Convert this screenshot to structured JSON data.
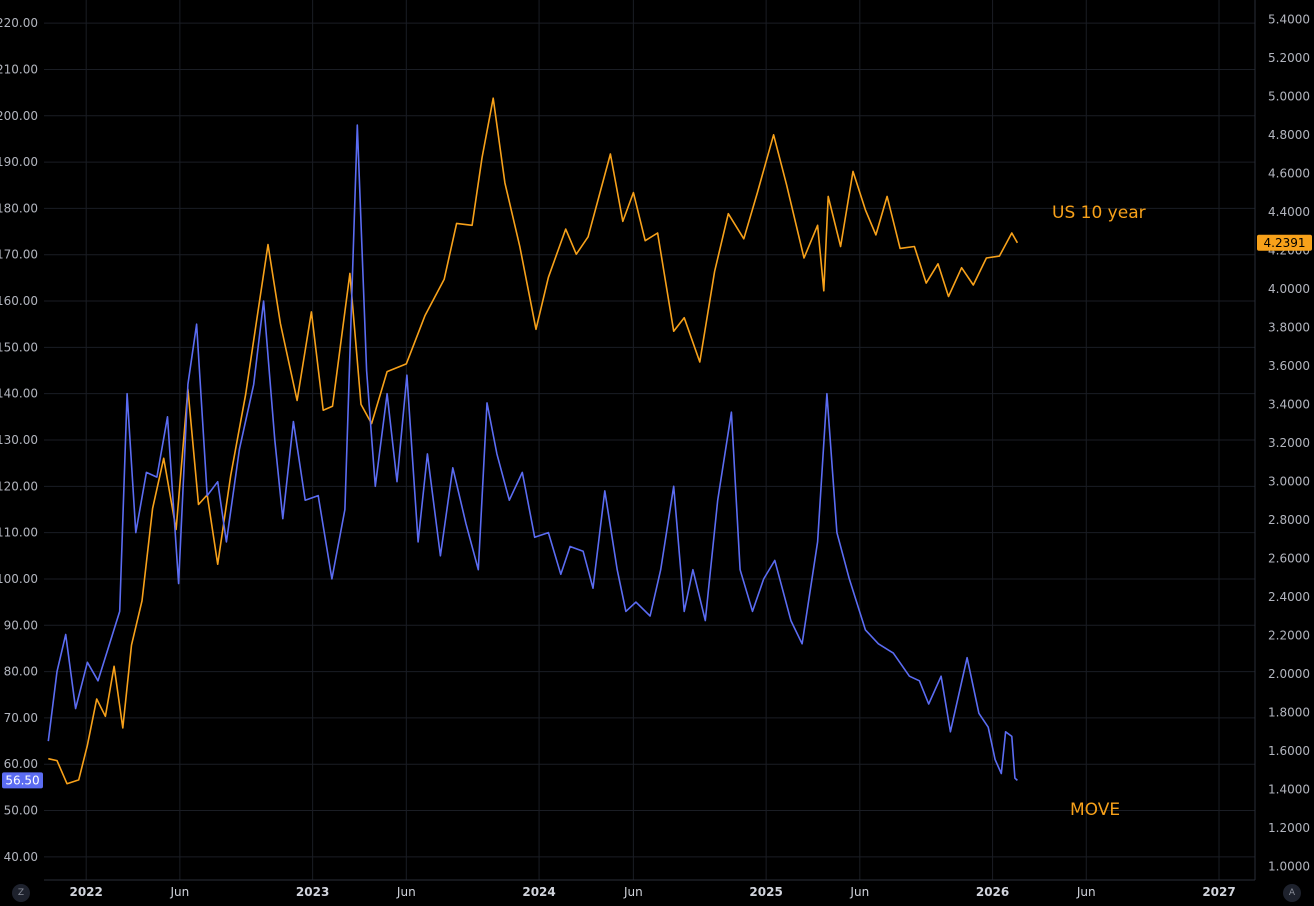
{
  "chart_data": {
    "type": "line",
    "x_axis": {
      "range": [
        "2021-10-25",
        "2027-02-28"
      ],
      "ticks": [
        "2022",
        "Jun",
        "2023",
        "Jun",
        "2024",
        "Jun",
        "2025",
        "Jun",
        "2026",
        "Jun",
        "2027"
      ],
      "tick_dates": [
        "2022-01-01",
        "2022-06-01",
        "2023-01-01",
        "2023-06-01",
        "2024-01-01",
        "2024-06-01",
        "2025-01-01",
        "2025-06-01",
        "2026-01-01",
        "2026-06-01",
        "2027-01-01"
      ]
    },
    "y_left": {
      "range": [
        35,
        225
      ],
      "ticks": [
        "40.00",
        "50.00",
        "60.00",
        "70.00",
        "80.00",
        "90.00",
        "100.00",
        "110.00",
        "120.00",
        "130.00",
        "140.00",
        "150.00",
        "160.00",
        "170.00",
        "180.00",
        "190.00",
        "200.00",
        "210.00",
        "220.00"
      ]
    },
    "y_right": {
      "range": [
        0.93,
        5.5
      ],
      "ticks": [
        "1.0000",
        "1.2000",
        "1.4000",
        "1.6000",
        "1.8000",
        "2.0000",
        "2.2000",
        "2.4000",
        "2.6000",
        "2.8000",
        "3.0000",
        "3.2000",
        "3.4000",
        "3.6000",
        "3.8000",
        "4.0000",
        "4.2000",
        "4.4000",
        "4.6000",
        "4.8000",
        "5.0000",
        "5.2000",
        "5.4000"
      ]
    },
    "grid": true,
    "series": [
      {
        "name": "US 10 year",
        "axis": "right",
        "color": "#f7a11a",
        "last_value": "4.2391",
        "points": [
          [
            "2021-11-01",
            1.56
          ],
          [
            "2021-11-15",
            1.55
          ],
          [
            "2021-12-01",
            1.43
          ],
          [
            "2021-12-20",
            1.45
          ],
          [
            "2022-01-03",
            1.63
          ],
          [
            "2022-01-18",
            1.87
          ],
          [
            "2022-02-01",
            1.78
          ],
          [
            "2022-02-15",
            2.04
          ],
          [
            "2022-03-01",
            1.72
          ],
          [
            "2022-03-15",
            2.15
          ],
          [
            "2022-04-01",
            2.38
          ],
          [
            "2022-04-18",
            2.86
          ],
          [
            "2022-05-06",
            3.12
          ],
          [
            "2022-05-26",
            2.75
          ],
          [
            "2022-06-14",
            3.48
          ],
          [
            "2022-07-01",
            2.88
          ],
          [
            "2022-07-15",
            2.93
          ],
          [
            "2022-08-01",
            2.57
          ],
          [
            "2022-08-22",
            3.03
          ],
          [
            "2022-09-15",
            3.45
          ],
          [
            "2022-10-01",
            3.8
          ],
          [
            "2022-10-21",
            4.23
          ],
          [
            "2022-11-10",
            3.82
          ],
          [
            "2022-12-07",
            3.42
          ],
          [
            "2022-12-30",
            3.88
          ],
          [
            "2023-01-18",
            3.37
          ],
          [
            "2023-02-02",
            3.39
          ],
          [
            "2023-03-02",
            4.08
          ],
          [
            "2023-03-20",
            3.4
          ],
          [
            "2023-04-06",
            3.3
          ],
          [
            "2023-05-01",
            3.57
          ],
          [
            "2023-06-01",
            3.61
          ],
          [
            "2023-07-01",
            3.86
          ],
          [
            "2023-08-01",
            4.05
          ],
          [
            "2023-08-21",
            4.34
          ],
          [
            "2023-09-15",
            4.33
          ],
          [
            "2023-10-01",
            4.68
          ],
          [
            "2023-10-19",
            4.99
          ],
          [
            "2023-11-07",
            4.55
          ],
          [
            "2023-12-01",
            4.22
          ],
          [
            "2023-12-27",
            3.79
          ],
          [
            "2024-01-16",
            4.06
          ],
          [
            "2024-02-13",
            4.31
          ],
          [
            "2024-03-01",
            4.18
          ],
          [
            "2024-03-20",
            4.27
          ],
          [
            "2024-04-25",
            4.7
          ],
          [
            "2024-05-15",
            4.35
          ],
          [
            "2024-06-01",
            4.5
          ],
          [
            "2024-06-20",
            4.25
          ],
          [
            "2024-07-10",
            4.29
          ],
          [
            "2024-08-05",
            3.78
          ],
          [
            "2024-08-22",
            3.85
          ],
          [
            "2024-09-16",
            3.62
          ],
          [
            "2024-10-10",
            4.09
          ],
          [
            "2024-11-01",
            4.39
          ],
          [
            "2024-11-26",
            4.26
          ],
          [
            "2024-12-18",
            4.5
          ],
          [
            "2025-01-13",
            4.8
          ],
          [
            "2025-02-03",
            4.54
          ],
          [
            "2025-03-03",
            4.16
          ],
          [
            "2025-03-25",
            4.33
          ],
          [
            "2025-04-04",
            3.99
          ],
          [
            "2025-04-11",
            4.48
          ],
          [
            "2025-05-01",
            4.22
          ],
          [
            "2025-05-21",
            4.61
          ],
          [
            "2025-06-10",
            4.41
          ],
          [
            "2025-06-27",
            4.28
          ],
          [
            "2025-07-15",
            4.48
          ],
          [
            "2025-08-05",
            4.21
          ],
          [
            "2025-08-28",
            4.22
          ],
          [
            "2025-09-16",
            4.03
          ],
          [
            "2025-10-05",
            4.13
          ],
          [
            "2025-10-22",
            3.96
          ],
          [
            "2025-11-12",
            4.11
          ],
          [
            "2025-12-01",
            4.02
          ],
          [
            "2025-12-22",
            4.16
          ],
          [
            "2026-01-12",
            4.17
          ],
          [
            "2026-02-01",
            4.29
          ],
          [
            "2026-02-10",
            4.2391
          ]
        ]
      },
      {
        "name": "MOVE",
        "axis": "left",
        "color": "#5b6cf2",
        "last_value": "56.50",
        "points": [
          [
            "2021-11-01",
            65
          ],
          [
            "2021-11-15",
            80
          ],
          [
            "2021-11-29",
            88
          ],
          [
            "2021-12-15",
            72
          ],
          [
            "2022-01-03",
            82
          ],
          [
            "2022-01-20",
            78
          ],
          [
            "2022-02-10",
            87
          ],
          [
            "2022-02-24",
            93
          ],
          [
            "2022-03-08",
            140
          ],
          [
            "2022-03-22",
            110
          ],
          [
            "2022-04-08",
            123
          ],
          [
            "2022-04-25",
            122
          ],
          [
            "2022-05-12",
            135
          ],
          [
            "2022-05-30",
            99
          ],
          [
            "2022-06-14",
            142
          ],
          [
            "2022-06-28",
            155
          ],
          [
            "2022-07-15",
            118
          ],
          [
            "2022-08-01",
            121
          ],
          [
            "2022-08-15",
            108
          ],
          [
            "2022-09-05",
            128
          ],
          [
            "2022-09-28",
            142
          ],
          [
            "2022-10-14",
            160
          ],
          [
            "2022-11-01",
            130
          ],
          [
            "2022-11-14",
            113
          ],
          [
            "2022-12-01",
            134
          ],
          [
            "2022-12-20",
            117
          ],
          [
            "2023-01-10",
            118
          ],
          [
            "2023-02-01",
            100
          ],
          [
            "2023-02-22",
            115
          ],
          [
            "2023-03-14",
            198
          ],
          [
            "2023-03-29",
            145
          ],
          [
            "2023-04-12",
            120
          ],
          [
            "2023-05-01",
            140
          ],
          [
            "2023-05-17",
            121
          ],
          [
            "2023-06-02",
            144
          ],
          [
            "2023-06-20",
            108
          ],
          [
            "2023-07-05",
            127
          ],
          [
            "2023-07-26",
            105
          ],
          [
            "2023-08-15",
            124
          ],
          [
            "2023-09-05",
            112
          ],
          [
            "2023-09-25",
            102
          ],
          [
            "2023-10-09",
            138
          ],
          [
            "2023-10-25",
            127
          ],
          [
            "2023-11-14",
            117
          ],
          [
            "2023-12-05",
            123
          ],
          [
            "2023-12-25",
            109
          ],
          [
            "2024-01-16",
            110
          ],
          [
            "2024-02-05",
            101
          ],
          [
            "2024-02-20",
            107
          ],
          [
            "2024-03-12",
            106
          ],
          [
            "2024-03-28",
            98
          ],
          [
            "2024-04-16",
            119
          ],
          [
            "2024-05-06",
            102
          ],
          [
            "2024-05-20",
            93
          ],
          [
            "2024-06-05",
            95
          ],
          [
            "2024-06-28",
            92
          ],
          [
            "2024-07-15",
            102
          ],
          [
            "2024-08-05",
            120
          ],
          [
            "2024-08-22",
            93
          ],
          [
            "2024-09-05",
            102
          ],
          [
            "2024-09-25",
            91
          ],
          [
            "2024-10-15",
            117
          ],
          [
            "2024-11-06",
            136
          ],
          [
            "2024-11-20",
            102
          ],
          [
            "2024-12-10",
            93
          ],
          [
            "2024-12-28",
            100
          ],
          [
            "2025-01-15",
            104
          ],
          [
            "2025-02-10",
            91
          ],
          [
            "2025-02-28",
            86
          ],
          [
            "2025-03-25",
            108
          ],
          [
            "2025-04-09",
            140
          ],
          [
            "2025-04-25",
            110
          ],
          [
            "2025-05-15",
            100
          ],
          [
            "2025-06-10",
            89
          ],
          [
            "2025-07-01",
            86
          ],
          [
            "2025-07-25",
            84
          ],
          [
            "2025-08-20",
            79
          ],
          [
            "2025-09-05",
            78
          ],
          [
            "2025-09-20",
            73
          ],
          [
            "2025-10-10",
            79
          ],
          [
            "2025-10-25",
            67
          ],
          [
            "2025-11-21",
            83
          ],
          [
            "2025-12-10",
            71
          ],
          [
            "2025-12-25",
            68
          ],
          [
            "2026-01-05",
            61
          ],
          [
            "2026-01-15",
            58
          ],
          [
            "2026-01-22",
            67
          ],
          [
            "2026-02-01",
            66
          ],
          [
            "2026-02-06",
            57
          ],
          [
            "2026-02-10",
            56.5
          ]
        ]
      }
    ],
    "annotations": [
      {
        "text": "US 10 year",
        "color": "#f7a11a"
      },
      {
        "text": "MOVE",
        "color": "#f7a11a"
      }
    ]
  },
  "corner_left_icon": "Z",
  "corner_right_icon": "A"
}
